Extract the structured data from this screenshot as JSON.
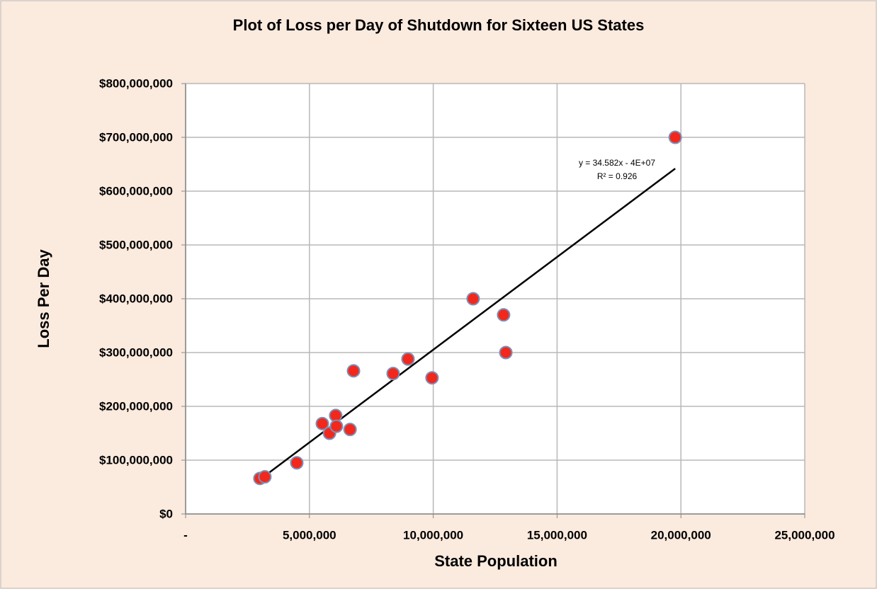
{
  "chart_data": {
    "type": "scatter",
    "title": "Plot of Loss per Day of Shutdown for Sixteen US States",
    "x_label": "State Population",
    "y_label": "Loss Per Day",
    "series": [
      {
        "name": "Loss per Day",
        "color": "#f2281c",
        "x": [
          3000000,
          3200000,
          4490000,
          5520000,
          5810000,
          6060000,
          6090000,
          6640000,
          6780000,
          8380000,
          8980000,
          9950000,
          11610000,
          12840000,
          12930000,
          19770000
        ],
        "values": [
          66000000,
          69000000,
          95000000,
          168000000,
          150000000,
          183000000,
          163000000,
          157000000,
          266000000,
          261000000,
          288000000,
          253000000,
          400000000,
          370000000,
          300000000,
          700000000
        ]
      }
    ],
    "trendline": {
      "equation": "y = 34.582x - 4E+07",
      "r_squared": "R² = 0.926",
      "color": "#000000",
      "x": [
        3000000,
        19770000
      ],
      "values": [
        64000000,
        642000000
      ]
    },
    "xlim": [
      0,
      25000000
    ],
    "xticks": [
      {
        "value": 0,
        "label": "-"
      },
      {
        "value": 5000000,
        "label": "5,000,000"
      },
      {
        "value": 10000000,
        "label": "10,000,000"
      },
      {
        "value": 15000000,
        "label": "15,000,000"
      },
      {
        "value": 20000000,
        "label": "20,000,000"
      },
      {
        "value": 25000000,
        "label": "25,000,000"
      }
    ],
    "ylim": [
      0,
      800000000
    ],
    "yticks": [
      {
        "value": 0,
        "label": "$0"
      },
      {
        "value": 100000000,
        "label": "$100,000,000"
      },
      {
        "value": 200000000,
        "label": "$200,000,000"
      },
      {
        "value": 300000000,
        "label": "$300,000,000"
      },
      {
        "value": 400000000,
        "label": "$400,000,000"
      },
      {
        "value": 500000000,
        "label": "$500,000,000"
      },
      {
        "value": 600000000,
        "label": "$600,000,000"
      },
      {
        "value": 700000000,
        "label": "$700,000,000"
      },
      {
        "value": 800000000,
        "label": "$800,000,000"
      }
    ],
    "grid": true
  }
}
